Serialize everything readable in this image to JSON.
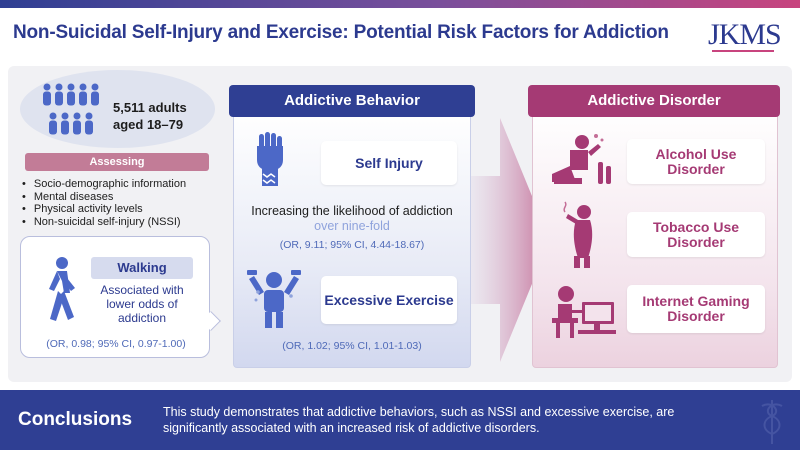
{
  "header": {
    "title": "Non-Suicidal Self-Injury and Exercise: Potential Risk Factors for Addiction",
    "logo": "JKMS"
  },
  "study": {
    "count": "5,511 adults",
    "age": "aged 18–79"
  },
  "assessing": {
    "label": "Assessing",
    "items": [
      "Socio-demographic information",
      "Mental diseases",
      "Physical activity levels",
      "Non-suicidal self-injury (NSSI)"
    ]
  },
  "walking": {
    "label": "Walking",
    "description": "Associated with lower odds of addiction",
    "stat": "(OR, 0.98; 95% CI, 0.97-1.00)"
  },
  "addictive_behavior": {
    "heading": "Addictive Behavior",
    "self_injury": "Self Injury",
    "likelihood_prefix": "Increasing the likelihood of addiction ",
    "likelihood_highlight": "over nine-fold",
    "self_injury_stat": "(OR, 9.11; 95% CI, 4.44-18.67)",
    "excessive_exercise": "Excessive Exercise",
    "exercise_stat": "(OR, 1.02; 95% CI, 1.01-1.03)"
  },
  "addictive_disorder": {
    "heading": "Addictive Disorder",
    "items": [
      "Alcohol Use Disorder",
      "Tobacco Use Disorder",
      "Internet Gaming Disorder"
    ]
  },
  "conclusions": {
    "title": "Conclusions",
    "text": "This study demonstrates that addictive behaviors, such as NSSI and excessive exercise, are significantly associated with an increased risk of addictive disorders."
  },
  "colors": {
    "navy": "#2f3f93",
    "magenta": "#a53a74",
    "crowd": "#4c68c7",
    "stat_blue": "#4f6ab8"
  }
}
